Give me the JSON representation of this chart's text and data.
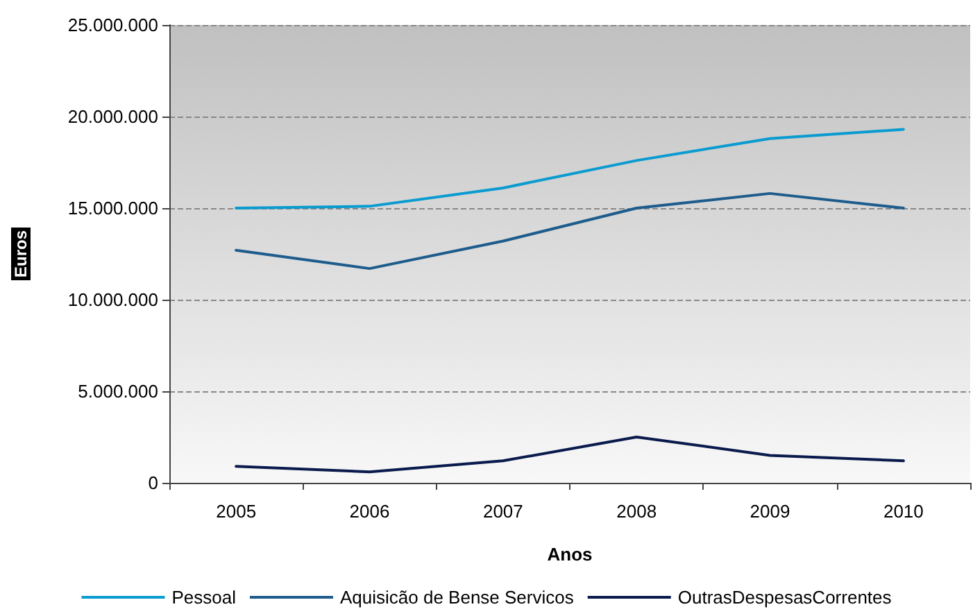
{
  "chart_data": {
    "type": "line",
    "xlabel": "Anos",
    "ylabel": "Euros",
    "categories": [
      "2005",
      "2006",
      "2007",
      "2008",
      "2009",
      "2010"
    ],
    "series": [
      {
        "name": "Pessoal",
        "color": "#0a9bd0",
        "values": [
          15000000,
          15100000,
          16100000,
          17600000,
          18800000,
          19300000
        ]
      },
      {
        "name": "Aquisicão de Bense Servicos",
        "color": "#1d5c8c",
        "values": [
          12700000,
          11700000,
          13200000,
          15000000,
          15800000,
          15000000
        ]
      },
      {
        "name": "OutrasDespesasCorrentes",
        "color": "#0b1a4d",
        "values": [
          900000,
          600000,
          1200000,
          2500000,
          1500000,
          1200000
        ]
      }
    ],
    "ylim": [
      0,
      25000000
    ],
    "yticks": [
      {
        "value": 0,
        "label": "0"
      },
      {
        "value": 5000000,
        "label": "5.000.000"
      },
      {
        "value": 10000000,
        "label": "10.000.000"
      },
      {
        "value": 15000000,
        "label": "15.000.000"
      },
      {
        "value": 20000000,
        "label": "20.000.000"
      },
      {
        "value": 25000000,
        "label": "25.000.000"
      }
    ],
    "grid": "y",
    "legend": "bottom",
    "marker": "none",
    "line_style": "solid"
  }
}
